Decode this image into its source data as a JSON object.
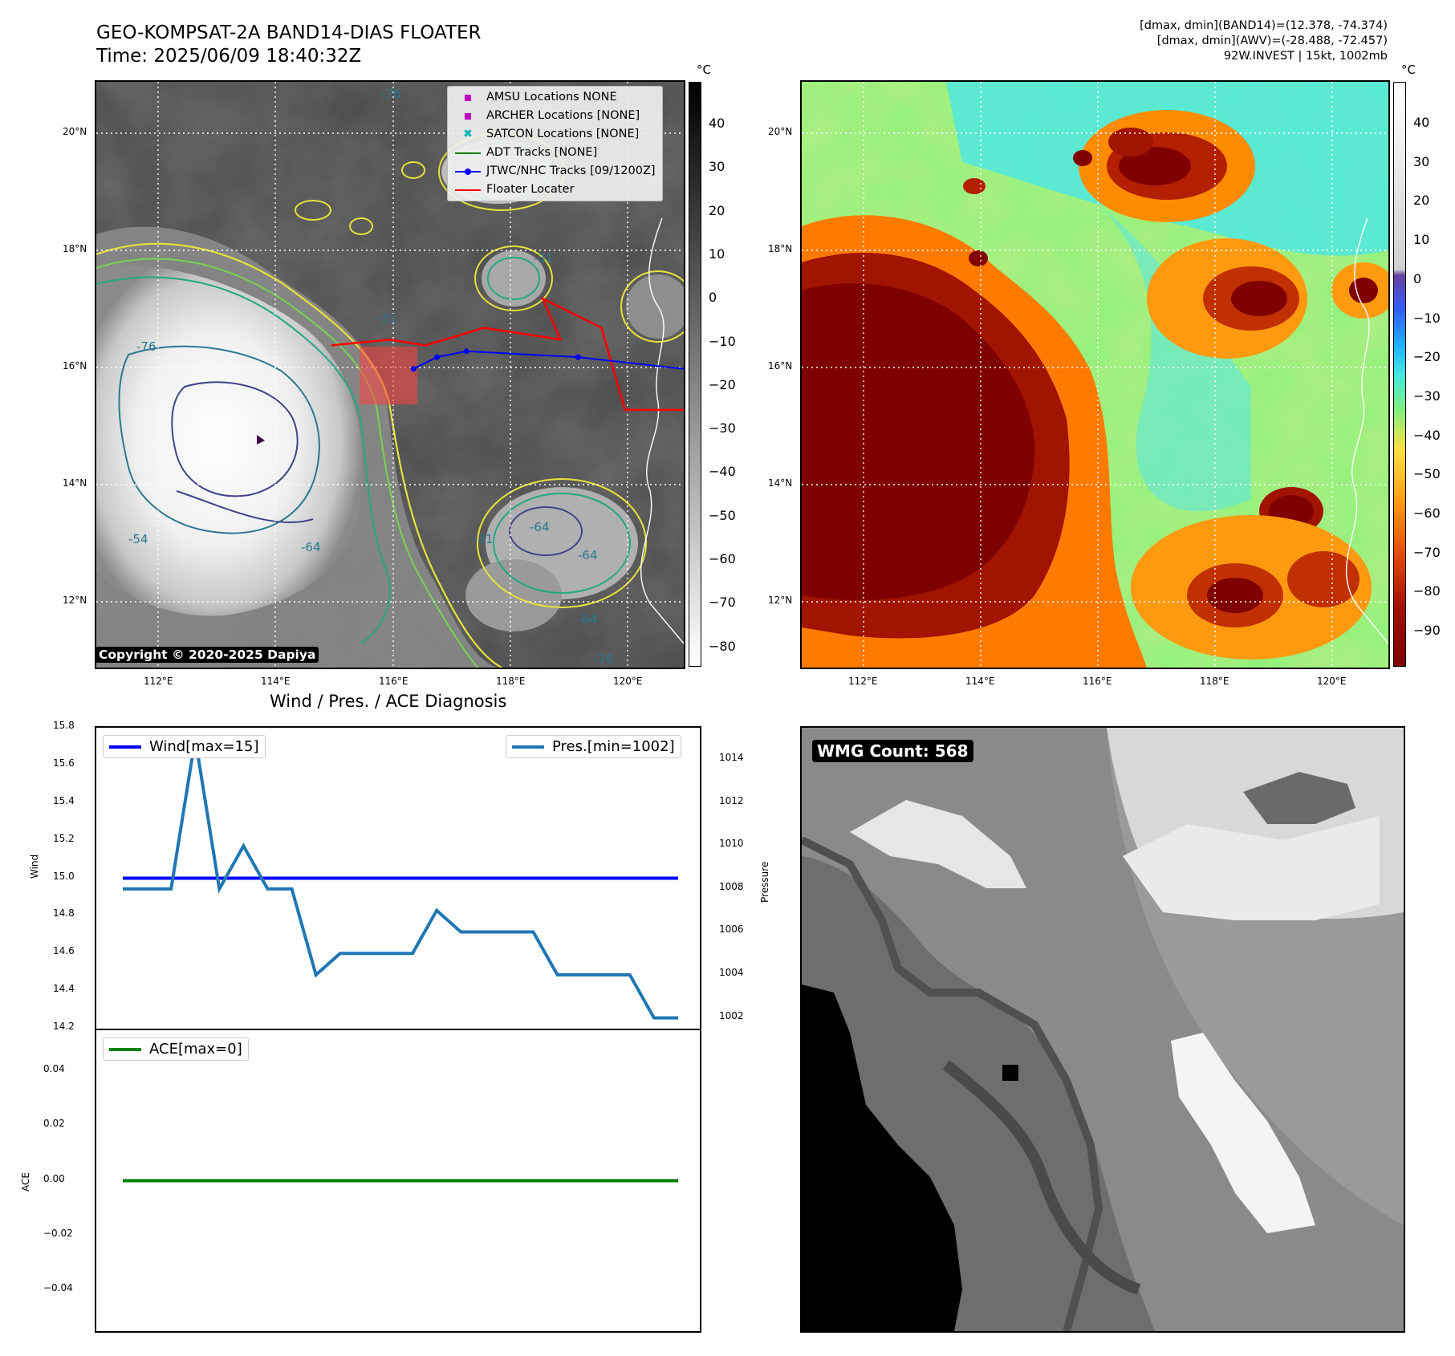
{
  "header": {
    "title_line1": "GEO-KOMPSAT-2A BAND14-DIAS FLOATER",
    "title_line2": "Time: 2025/06/09 18:40:32Z",
    "info_line1": "[dmax, dmin](BAND14)=(12.378, -74.374)",
    "info_line2": "[dmax, dmin](AWV)=(-28.488, -72.457)",
    "info_line3": "92W.INVEST | 15kt, 1002mb"
  },
  "map_axes": {
    "lat_ticks": [
      "20°N",
      "18°N",
      "16°N",
      "14°N",
      "12°N"
    ],
    "lon_ticks": [
      "112°E",
      "114°E",
      "116°E",
      "118°E",
      "120°E"
    ],
    "lon_range": [
      111,
      121
    ],
    "lat_range": [
      11,
      21
    ]
  },
  "ir_panel": {
    "legend": [
      {
        "label": "AMSU Locations NONE",
        "symbol": "square",
        "color": "#bf00bf"
      },
      {
        "label": "ARCHER Locations [NONE]",
        "symbol": "square",
        "color": "#bf00bf"
      },
      {
        "label": "SATCON Locations [NONE]",
        "symbol": "x",
        "color": "#00b3b3"
      },
      {
        "label": "ADT Tracks [NONE]",
        "symbol": "line",
        "color": "#008000"
      },
      {
        "label": "JTWC/NHC Tracks [09/1200Z]",
        "symbol": "line-dot",
        "color": "#0000ff"
      },
      {
        "label": "Floater Locater",
        "symbol": "line",
        "color": "#ff0000"
      }
    ],
    "copyright": "Copyright © 2020-2025 Dapiya",
    "colorbar_unit": "°C",
    "colorbar_ticks": [
      "40",
      "30",
      "20",
      "10",
      "0",
      "−10",
      "−20",
      "−30",
      "−40",
      "−50",
      "−60",
      "−70",
      "−80"
    ],
    "contour_labels": [
      "-76",
      "-76",
      "-31",
      "-64",
      "-54",
      "-31",
      "-31",
      "-64",
      "-76",
      "-64",
      "-64"
    ],
    "jtwc_track": [
      [
        116.4,
        16.1
      ],
      [
        116.8,
        16.3
      ],
      [
        117.3,
        16.4
      ],
      [
        119.2,
        16.3
      ],
      [
        121,
        16.1
      ]
    ],
    "floater_track": [
      [
        115.0,
        16.5
      ],
      [
        116.0,
        16.6
      ],
      [
        116.6,
        16.5
      ],
      [
        117.6,
        16.8
      ],
      [
        118.9,
        16.6
      ],
      [
        118.6,
        17.3
      ],
      [
        119.6,
        16.8
      ],
      [
        120.0,
        15.4
      ],
      [
        121,
        15.4
      ]
    ]
  },
  "awv_panel": {
    "colorbar_unit": "°C",
    "colorbar_ticks": [
      "40",
      "30",
      "20",
      "10",
      "0",
      "−10",
      "−20",
      "−30",
      "−40",
      "−50",
      "−60",
      "−70",
      "−80",
      "−90"
    ]
  },
  "diag_panel": {
    "title": "Wind / Pres. / ACE Diagnosis",
    "wind_legend": "Wind[max=15]",
    "pres_legend": "Pres.[min=1002]",
    "ace_legend": "ACE[max=0]",
    "wind_axis_label": "Wind",
    "pres_axis_label": "Pressure",
    "ace_axis_label": "ACE",
    "wind_ticks": [
      "15.8",
      "15.6",
      "15.4",
      "15.2",
      "15.0",
      "14.8",
      "14.6",
      "14.4",
      "14.2"
    ],
    "pres_ticks": [
      "1014",
      "1012",
      "1010",
      "1008",
      "1006",
      "1004",
      "1002"
    ],
    "ace_ticks": [
      "0.04",
      "0.02",
      "0.00",
      "−0.02",
      "−0.04"
    ]
  },
  "wmg_panel": {
    "label": "WMG Count: 568"
  },
  "chart_data": {
    "type": "line",
    "title": "Wind / Pres. / ACE Diagnosis",
    "series": [
      {
        "name": "Wind[max=15]",
        "color": "#0000ff",
        "values": [
          15,
          15,
          15,
          15,
          15,
          15,
          15,
          15,
          15,
          15,
          15,
          15,
          15,
          15,
          15,
          15,
          15,
          15,
          15,
          15,
          15,
          15,
          15,
          15
        ]
      },
      {
        "name": "Pres.[min=1002]",
        "color": "#1f77b4",
        "values": [
          1008,
          1008,
          1008,
          1015,
          1008,
          1010,
          1008,
          1008,
          1004,
          1005,
          1005,
          1005,
          1005,
          1007,
          1006,
          1006,
          1006,
          1006,
          1004,
          1004,
          1004,
          1004,
          1002,
          1002
        ]
      },
      {
        "name": "ACE[max=0]",
        "color": "#008000",
        "values": [
          0,
          0,
          0,
          0,
          0,
          0,
          0,
          0,
          0,
          0,
          0,
          0,
          0,
          0,
          0,
          0,
          0,
          0,
          0,
          0,
          0,
          0,
          0,
          0
        ]
      }
    ],
    "ylim_wind": [
      14.2,
      15.8
    ],
    "ylim_pressure": [
      1001.5,
      1015.5
    ],
    "ylim_ace": [
      -0.055,
      0.055
    ],
    "grid": false,
    "legend": "top-left / top-right"
  }
}
